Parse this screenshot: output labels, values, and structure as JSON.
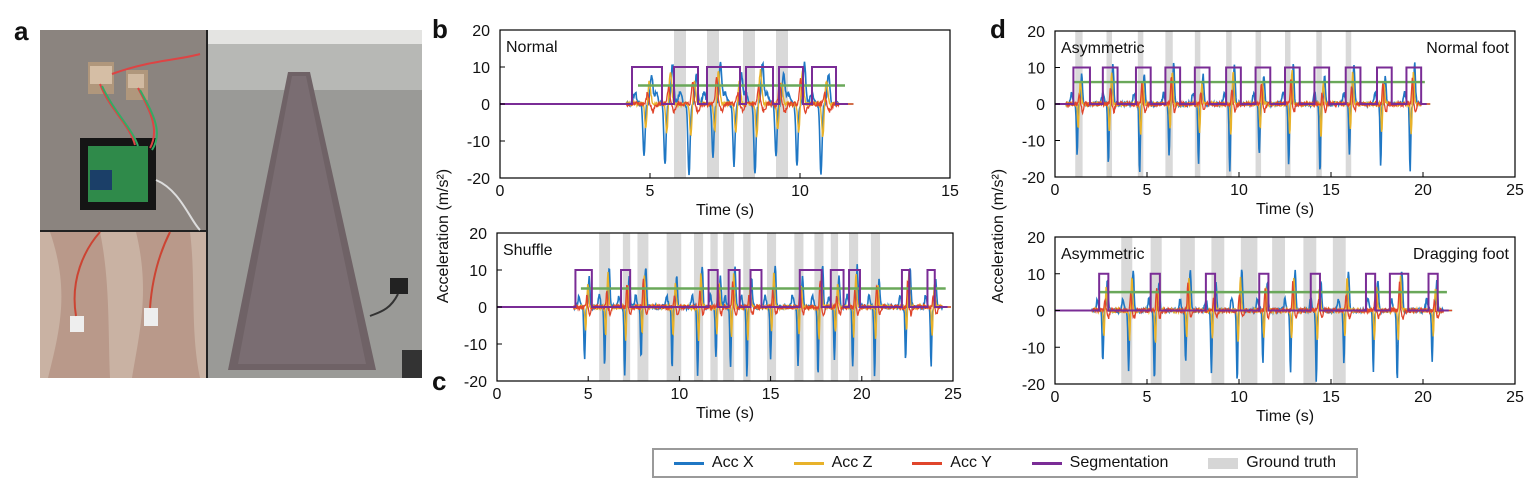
{
  "panel_labels": [
    "a",
    "b",
    "c",
    "d"
  ],
  "colors": {
    "acc_x": "#1f77c4",
    "acc_z": "#e8b22a",
    "acc_y": "#e0452b",
    "segmentation": "#7a2c96",
    "ground_truth_line": "#6aa85a",
    "ground_truth_band": "#d9d9d9"
  },
  "legend": {
    "items": [
      {
        "label": "Acc X",
        "kind": "line",
        "color": "#1f77c4"
      },
      {
        "label": "Acc Z",
        "kind": "line",
        "color": "#e8b22a"
      },
      {
        "label": "Acc Y",
        "kind": "line",
        "color": "#e0452b"
      },
      {
        "label": "Segmentation",
        "kind": "line",
        "color": "#7a2c96"
      },
      {
        "label": "Ground truth",
        "kind": "band",
        "color": "#d6d6d6"
      }
    ]
  },
  "chart_data": [
    {
      "id": "b",
      "type": "line",
      "annotation": "Normal",
      "xlabel": "Time (s)",
      "ylabel": "Acceleration (m/s²)",
      "xlim": [
        0,
        15
      ],
      "ylim": [
        -20,
        20
      ],
      "xticks": [
        0,
        5,
        10,
        15
      ],
      "yticks": [
        20,
        10,
        0,
        -10,
        -20
      ],
      "segment_windows": [
        [
          4.4,
          5.4
        ],
        [
          5.8,
          6.6
        ],
        [
          6.9,
          8.0
        ],
        [
          8.2,
          9.1
        ],
        [
          9.3,
          10.1
        ],
        [
          10.4,
          11.2
        ]
      ],
      "ground_truth_bands": [
        [
          5.8,
          6.2
        ],
        [
          6.9,
          7.3
        ],
        [
          8.1,
          8.5
        ],
        [
          9.2,
          9.6
        ]
      ],
      "ground_truth_level": 5,
      "gait_events": [
        4.8,
        5.5,
        6.3,
        7.1,
        7.8,
        8.5,
        9.2,
        9.9,
        10.7
      ]
    },
    {
      "id": "c",
      "type": "line",
      "annotation": "Shuffle",
      "xlabel": "Time (s)",
      "ylabel": "",
      "xlim": [
        0,
        25
      ],
      "ylim": [
        -20,
        20
      ],
      "xticks": [
        0,
        5,
        10,
        15,
        20,
        25
      ],
      "yticks": [
        20,
        10,
        0,
        -10,
        -20
      ],
      "segment_windows": [
        [
          4.3,
          5.2
        ],
        [
          6.8,
          7.3
        ],
        [
          11.6,
          12.1
        ],
        [
          12.7,
          13.3
        ],
        [
          13.9,
          14.5
        ],
        [
          16.6,
          17.8
        ],
        [
          18.3,
          19.0
        ],
        [
          19.3,
          19.9
        ],
        [
          22.2,
          22.6
        ],
        [
          23.6,
          24.0
        ]
      ],
      "ground_truth_bands": [
        [
          5.6,
          6.2
        ],
        [
          6.9,
          7.3
        ],
        [
          7.7,
          8.3
        ],
        [
          9.3,
          10.1
        ],
        [
          10.8,
          11.3
        ],
        [
          11.7,
          12.1
        ],
        [
          12.4,
          13.0
        ],
        [
          13.5,
          13.9
        ],
        [
          14.8,
          15.3
        ],
        [
          16.3,
          16.8
        ],
        [
          17.4,
          17.9
        ],
        [
          18.3,
          18.7
        ],
        [
          19.3,
          19.8
        ],
        [
          20.5,
          21.0
        ]
      ],
      "ground_truth_level": 5,
      "gait_events": [
        4.8,
        5.9,
        7.0,
        7.9,
        9.6,
        11.0,
        12.0,
        12.8,
        13.7,
        15.0,
        16.5,
        17.6,
        18.5,
        19.5,
        20.7,
        22.4,
        23.8
      ]
    },
    {
      "id": "d_top",
      "type": "line",
      "annotation": "Asymmetric",
      "annotation_right": "Normal foot",
      "xlabel": "Time (s)",
      "ylabel": "Acceleration (m/s²)",
      "xlim": [
        0,
        25
      ],
      "ylim": [
        -20,
        20
      ],
      "xticks": [
        0,
        5,
        10,
        15,
        20,
        25
      ],
      "yticks": [
        20,
        10,
        0,
        -10,
        -20
      ],
      "segment_windows": [
        [
          1.0,
          1.9
        ],
        [
          2.6,
          3.4
        ],
        [
          4.4,
          5.2
        ],
        [
          6.0,
          6.8
        ],
        [
          7.6,
          8.4
        ],
        [
          9.3,
          10.1
        ],
        [
          10.9,
          11.7
        ],
        [
          12.5,
          13.3
        ],
        [
          14.1,
          14.9
        ],
        [
          15.8,
          16.6
        ],
        [
          17.5,
          18.3
        ],
        [
          19.1,
          19.9
        ]
      ],
      "ground_truth_bands": [
        [
          1.1,
          1.5
        ],
        [
          2.8,
          3.1
        ],
        [
          4.5,
          4.8
        ],
        [
          6.0,
          6.4
        ],
        [
          7.6,
          7.9
        ],
        [
          9.3,
          9.6
        ],
        [
          10.9,
          11.2
        ],
        [
          12.5,
          12.8
        ],
        [
          14.2,
          14.5
        ],
        [
          15.8,
          16.1
        ]
      ],
      "ground_truth_level": 6,
      "gait_events": [
        1.2,
        2.9,
        4.6,
        6.2,
        7.8,
        9.5,
        11.1,
        12.7,
        14.4,
        16.0,
        17.7,
        19.3
      ]
    },
    {
      "id": "d_bottom",
      "type": "line",
      "annotation": "Asymmetric",
      "annotation_right": "Dragging foot",
      "xlabel": "Time (s)",
      "ylabel": "",
      "xlim": [
        0,
        25
      ],
      "ylim": [
        -20,
        20
      ],
      "xticks": [
        0,
        5,
        10,
        15,
        20,
        25
      ],
      "yticks": [
        20,
        10,
        0,
        -10,
        -20
      ],
      "segment_windows": [
        [
          2.4,
          2.9
        ],
        [
          5.2,
          5.7
        ],
        [
          8.2,
          8.7
        ],
        [
          11.1,
          11.6
        ],
        [
          13.9,
          14.4
        ],
        [
          16.9,
          17.4
        ],
        [
          18.2,
          19.2
        ],
        [
          20.3,
          20.8
        ]
      ],
      "ground_truth_bands": [
        [
          3.6,
          4.2
        ],
        [
          5.2,
          5.8
        ],
        [
          6.8,
          7.6
        ],
        [
          8.5,
          9.2
        ],
        [
          10.1,
          11.0
        ],
        [
          11.8,
          12.5
        ],
        [
          13.5,
          14.2
        ],
        [
          15.1,
          15.8
        ]
      ],
      "ground_truth_level": 5,
      "gait_events": [
        2.6,
        4.0,
        5.4,
        7.1,
        8.5,
        9.9,
        11.3,
        12.8,
        14.2,
        15.7,
        17.3,
        18.6,
        20.5
      ]
    }
  ]
}
